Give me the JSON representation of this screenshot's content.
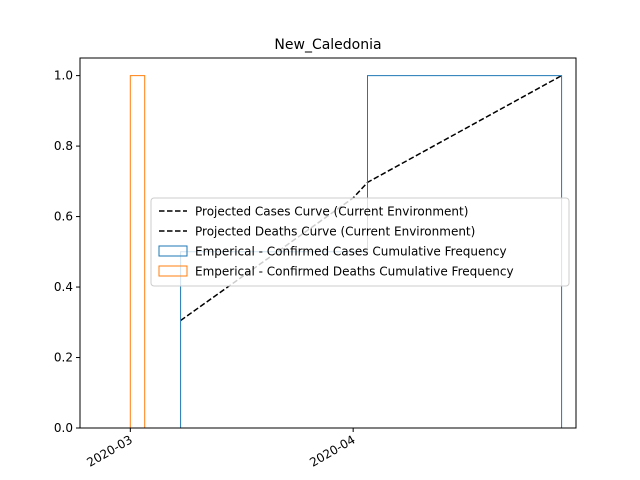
{
  "chart_data": {
    "type": "histogram",
    "title": "New_Caledonia",
    "xlabel": "",
    "ylabel": "",
    "xlim": [
      "2020-02-23",
      "2020-05-02"
    ],
    "ylim": [
      0,
      1.05
    ],
    "x_ticks": [
      "2020-03",
      "2020-04"
    ],
    "y_ticks": [
      "0.0",
      "0.2",
      "0.4",
      "0.6",
      "0.8",
      "1.0"
    ],
    "grid": false,
    "legend_position": "center-right",
    "series": [
      {
        "name": "Projected Cases Curve (Current Environment)",
        "kind": "line",
        "style": "dashed",
        "color": "#000000",
        "points": [
          {
            "x": "2020-03-08",
            "y": 0.305
          },
          {
            "x": "2020-04-01",
            "y": 0.653
          },
          {
            "x": "2020-04-03",
            "y": 0.697
          },
          {
            "x": "2020-04-30",
            "y": 1.0
          }
        ]
      },
      {
        "name": "Projected Deaths Curve (Current Environment)",
        "kind": "line",
        "style": "dashed",
        "color": "#000000",
        "points": []
      },
      {
        "name": "Emperical - Confirmed Cases Cumulative Frequency",
        "kind": "step",
        "color": "#1f77b4",
        "points": [
          {
            "x": "2020-03-08",
            "y": 0
          },
          {
            "x": "2020-03-08",
            "y": 0.5
          },
          {
            "x": "2020-04-03",
            "y": 0.5
          },
          {
            "x": "2020-04-03",
            "y": 1.0
          },
          {
            "x": "2020-04-30",
            "y": 1.0
          },
          {
            "x": "2020-04-30",
            "y": 0
          }
        ]
      },
      {
        "name": "Emperical - Confirmed Deaths Cumulative Frequency",
        "kind": "step",
        "color": "#ff7f0e",
        "points": [
          {
            "x": "2020-03-01",
            "y": 0
          },
          {
            "x": "2020-03-01",
            "y": 1.0
          },
          {
            "x": "2020-03-03",
            "y": 1.0
          },
          {
            "x": "2020-03-03",
            "y": 0
          }
        ]
      }
    ]
  }
}
